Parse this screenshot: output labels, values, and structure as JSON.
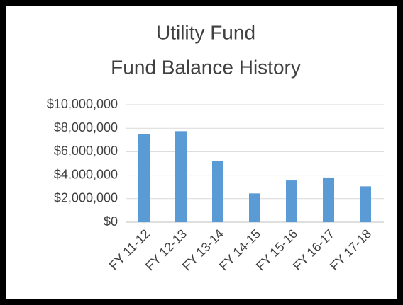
{
  "chart_data": {
    "type": "bar",
    "title": [
      "Utility Fund",
      "Fund Balance History"
    ],
    "categories": [
      "FY 11-12",
      "FY 12-13",
      "FY 13-14",
      "FY 14-15",
      "FY 15-16",
      "FY 16-17",
      "FY 17-18"
    ],
    "values": [
      7500000,
      7750000,
      5200000,
      2450000,
      3550000,
      3800000,
      3050000
    ],
    "color": "#5b9bd5",
    "ylim": [
      0,
      10000000
    ],
    "yticks": [
      {
        "value": 0,
        "label": "$0"
      },
      {
        "value": 2000000,
        "label": "$2,000,000"
      },
      {
        "value": 4000000,
        "label": "$4,000,000"
      },
      {
        "value": 6000000,
        "label": "$6,000,000"
      },
      {
        "value": 8000000,
        "label": "$8,000,000"
      },
      {
        "value": 10000000,
        "label": "$10,000,000"
      }
    ],
    "grid": true
  }
}
